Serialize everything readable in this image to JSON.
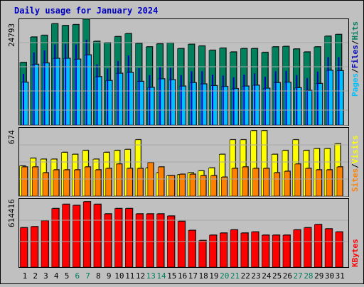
{
  "title": "Daily usage for January 2024",
  "colors": {
    "background": "#c0c0c0",
    "plot_bg": "#c0c0c0",
    "title": "#0000c0",
    "hits": "#00805c",
    "files": "#0000c0",
    "pages": "#00c0ff",
    "visits": "#ffff00",
    "sites": "#ff8000",
    "kbytes": "#ff0000",
    "weekend_label": "#00805c",
    "weekday_label": "#000000"
  },
  "chart_data": [
    {
      "type": "bar",
      "name": "hits-files-pages",
      "max_label": "24793",
      "ylim": [
        0,
        24793
      ],
      "legend": [
        {
          "text": "Pages",
          "color": "#00c0ff"
        },
        {
          "text": "/",
          "color": "#000000"
        },
        {
          "text": "Files",
          "color": "#0000c0"
        },
        {
          "text": "/",
          "color": "#000000"
        },
        {
          "text": "Hits",
          "color": "#00805c"
        }
      ],
      "series": [
        {
          "name": "Hits",
          "values": [
            14650,
            20600,
            21000,
            23700,
            23300,
            23500,
            24793,
            19600,
            19300,
            20700,
            21400,
            19100,
            18300,
            19000,
            19200,
            17900,
            18900,
            18500,
            17500,
            18000,
            17100,
            17900,
            17900,
            17000,
            18300,
            18400,
            17800,
            17100,
            18300,
            20800,
            21200
          ]
        },
        {
          "name": "Files",
          "values": [
            12000,
            17000,
            17500,
            18900,
            19000,
            18900,
            20000,
            14200,
            13200,
            15000,
            16300,
            13300,
            11700,
            13600,
            13400,
            11700,
            12600,
            12600,
            11800,
            11600,
            11200,
            11800,
            12100,
            11300,
            12600,
            12700,
            11700,
            11000,
            12500,
            15900,
            15900
          ]
        },
        {
          "name": "Pages",
          "values": [
            11000,
            15200,
            15500,
            16600,
            16600,
            16400,
            17400,
            12300,
            11400,
            13100,
            13300,
            11200,
            9800,
            11800,
            11600,
            10100,
            10900,
            10600,
            10200,
            10000,
            9500,
            10100,
            10300,
            9600,
            10900,
            11000,
            9700,
            9100,
            10700,
            13800,
            13700
          ]
        }
      ]
    },
    {
      "type": "bar",
      "name": "visits-sites",
      "max_label": "674",
      "ylim": [
        0,
        674
      ],
      "legend": [
        {
          "text": "Sites",
          "color": "#ff8000"
        },
        {
          "text": "/",
          "color": "#000000"
        },
        {
          "text": "Visits",
          "color": "#ffff00"
        }
      ],
      "series": [
        {
          "name": "Visits",
          "values": [
            310,
            390,
            380,
            380,
            450,
            430,
            470,
            380,
            450,
            470,
            480,
            580,
            290,
            240,
            210,
            220,
            240,
            260,
            290,
            430,
            580,
            580,
            674,
            674,
            430,
            470,
            580,
            470,
            490,
            490,
            540
          ]
        },
        {
          "name": "Sites",
          "values": [
            200,
            200,
            160,
            180,
            180,
            180,
            200,
            180,
            190,
            220,
            190,
            190,
            230,
            200,
            140,
            150,
            150,
            140,
            140,
            130,
            190,
            200,
            190,
            190,
            160,
            170,
            220,
            190,
            180,
            180,
            200
          ]
        }
      ]
    },
    {
      "type": "bar",
      "name": "kbytes",
      "max_label": "614416",
      "ylim": [
        0,
        614416
      ],
      "legend": [
        {
          "text": "KBytes",
          "color": "#ff0000"
        }
      ],
      "series": [
        {
          "name": "KBytes",
          "values": [
            370000,
            380000,
            435000,
            550000,
            590000,
            580000,
            614416,
            590000,
            500000,
            550000,
            550000,
            500000,
            500000,
            500000,
            480000,
            430000,
            345000,
            250000,
            300000,
            320000,
            350000,
            320000,
            330000,
            300000,
            300000,
            300000,
            350000,
            370000,
            400000,
            360000,
            330000
          ]
        }
      ]
    }
  ],
  "x_axis": {
    "days": [
      "1",
      "2",
      "3",
      "4",
      "5",
      "6",
      "7",
      "8",
      "9",
      "10",
      "11",
      "12",
      "13",
      "14",
      "15",
      "16",
      "17",
      "18",
      "19",
      "20",
      "21",
      "22",
      "23",
      "24",
      "25",
      "26",
      "27",
      "28",
      "29",
      "30",
      "31"
    ],
    "weekend_days": [
      6,
      7,
      13,
      14,
      20,
      21,
      27,
      28
    ]
  }
}
